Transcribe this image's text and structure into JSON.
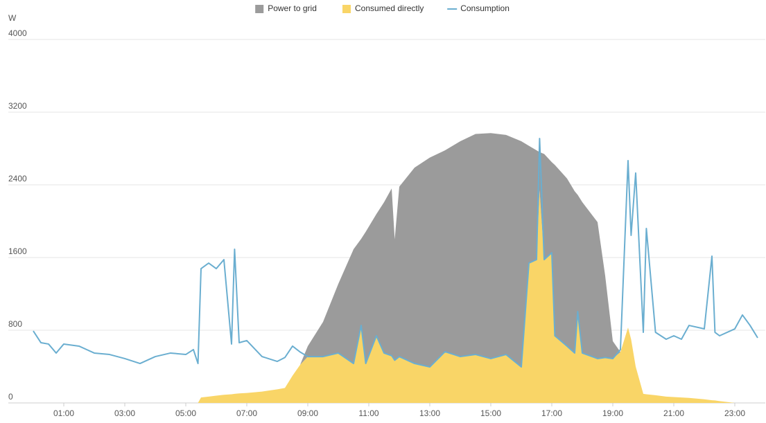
{
  "chart_data": {
    "type": "area",
    "stacked": true,
    "y_label": "W",
    "xlim": [
      0,
      24
    ],
    "ylim": [
      0,
      4000
    ],
    "yticks": [
      0,
      800,
      1600,
      2400,
      3200,
      4000
    ],
    "xticks": [
      {
        "value": 1,
        "label": "01:00"
      },
      {
        "value": 3,
        "label": "03:00"
      },
      {
        "value": 5,
        "label": "05:00"
      },
      {
        "value": 7,
        "label": "07:00"
      },
      {
        "value": 9,
        "label": "09:00"
      },
      {
        "value": 11,
        "label": "11:00"
      },
      {
        "value": 13,
        "label": "13:00"
      },
      {
        "value": 15,
        "label": "15:00"
      },
      {
        "value": 17,
        "label": "17:00"
      },
      {
        "value": 19,
        "label": "19:00"
      },
      {
        "value": 21,
        "label": "21:00"
      },
      {
        "value": 23,
        "label": "23:00"
      }
    ],
    "grid": true,
    "legend": "top",
    "x": [
      0,
      0.25,
      0.5,
      0.75,
      1,
      1.5,
      2,
      2.5,
      3,
      3.5,
      4,
      4.5,
      5,
      5.25,
      5.4,
      5.5,
      5.75,
      6,
      6.25,
      6.5,
      6.6,
      6.75,
      7,
      7.5,
      8,
      8.25,
      8.5,
      8.75,
      9,
      9.5,
      10,
      10.5,
      10.75,
      10.9,
      11.25,
      11.5,
      11.75,
      11.85,
      12,
      12.5,
      13,
      13.5,
      14,
      14.5,
      15,
      15.5,
      16,
      16.25,
      16.5,
      16.6,
      16.75,
      17,
      17.1,
      17.5,
      17.75,
      17.85,
      18,
      18.5,
      18.75,
      19,
      19.25,
      19.5,
      19.6,
      19.75,
      20,
      20.1,
      20.4,
      20.75,
      21,
      21.25,
      21.5,
      22,
      22.25,
      22.35,
      22.5,
      23,
      23.25,
      23.5,
      23.75
    ],
    "series": [
      {
        "name": "Power to grid",
        "type": "area",
        "color": "#9b9b9b",
        "values": [
          0,
          0,
          0,
          0,
          0,
          0,
          0,
          0,
          0,
          0,
          0,
          0,
          0,
          0,
          0,
          0,
          0,
          0,
          0,
          0,
          0,
          0,
          0,
          0,
          0,
          0,
          0,
          0,
          115,
          381,
          761,
          1257,
          953,
          1450,
          1340,
          1660,
          1840,
          1330,
          1870,
          2156,
          2304,
          2216,
          2370,
          2427,
          2482,
          2417,
          2484,
          1291,
          1203,
          420,
          1163,
          997,
          1880,
          1845,
          1781,
          1284,
          1661,
          1502,
          900,
          192,
          0,
          0,
          0,
          0,
          0,
          0,
          0,
          0,
          0,
          0,
          0,
          0,
          0,
          0,
          0,
          0,
          0,
          0,
          0
        ]
      },
      {
        "name": "Consumed directly",
        "type": "area",
        "color": "#f9d567",
        "values": [
          0,
          0,
          0,
          0,
          0,
          0,
          0,
          0,
          0,
          0,
          0,
          0,
          0,
          0,
          0,
          60,
          70,
          80,
          90,
          95,
          100,
          105,
          110,
          125,
          150,
          165,
          300,
          420,
          510,
          510,
          549,
          434,
          853,
          434,
          739,
          549,
          520,
          470,
          510,
          434,
          396,
          564,
          510,
          533,
          488,
          533,
          396,
          1539,
          1577,
          2340,
          1577,
          1653,
          739,
          625,
          549,
          1006,
          549,
          488,
          500,
          488,
          560,
          830,
          700,
          400,
          100,
          95,
          85,
          70,
          65,
          60,
          55,
          40,
          30,
          28,
          20,
          0,
          0,
          0,
          0
        ]
      },
      {
        "name": "Consumption",
        "type": "line",
        "color": "#6aaed0",
        "values": [
          792,
          663,
          648,
          549,
          648,
          625,
          549,
          533,
          488,
          434,
          510,
          549,
          533,
          587,
          434,
          1478,
          1539,
          1478,
          1577,
          648,
          1691,
          663,
          686,
          510,
          457,
          500,
          625,
          560,
          510,
          510,
          549,
          434,
          853,
          434,
          739,
          549,
          520,
          470,
          510,
          434,
          396,
          564,
          510,
          533,
          488,
          533,
          396,
          1539,
          1577,
          2910,
          1577,
          1653,
          739,
          625,
          549,
          1006,
          549,
          488,
          500,
          488,
          587,
          2667,
          1844,
          2530,
          777,
          1920,
          777,
          701,
          739,
          701,
          853,
          815,
          1615,
          777,
          739,
          815,
          968,
          853,
          716
        ]
      }
    ]
  }
}
